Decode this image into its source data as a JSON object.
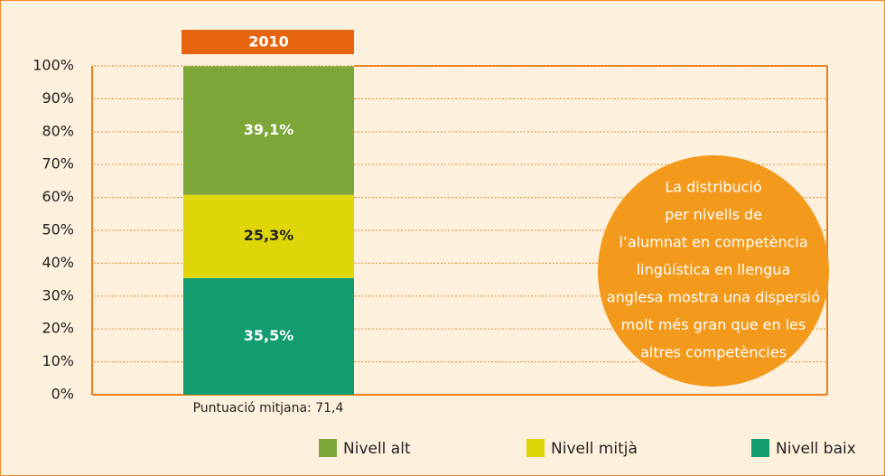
{
  "chart_data": {
    "type": "stacked_bar",
    "categories": [
      "2010"
    ],
    "series": [
      {
        "name": "Nivell baix",
        "color": "#129c6f",
        "values": [
          35.5
        ],
        "value_labels": [
          "35,5%"
        ],
        "label_color": "#ffffff"
      },
      {
        "name": "Nivell mitjà",
        "color": "#dfd60a",
        "values": [
          25.3
        ],
        "value_labels": [
          "25,3%"
        ],
        "label_color": "#222222"
      },
      {
        "name": "Nivell alt",
        "color": "#7ea73a",
        "values": [
          39.1
        ],
        "value_labels": [
          "39,1%"
        ],
        "label_color": "#ffffff"
      }
    ],
    "ylim": [
      0,
      100
    ],
    "yticks": [
      {
        "value": 0,
        "label": "0%"
      },
      {
        "value": 10,
        "label": "10%"
      },
      {
        "value": 20,
        "label": "20%"
      },
      {
        "value": 30,
        "label": "30%"
      },
      {
        "value": 40,
        "label": "40%"
      },
      {
        "value": 50,
        "label": "50%"
      },
      {
        "value": 60,
        "label": "60%"
      },
      {
        "value": 70,
        "label": "70%"
      },
      {
        "value": 80,
        "label": "80%"
      },
      {
        "value": 90,
        "label": "90%"
      },
      {
        "value": 100,
        "label": "100%"
      }
    ],
    "grid": true,
    "note": "Puntuació mitjana: 71,4",
    "annotation": [
      "La distribució",
      "per nivells de",
      "l’alumnat en competència",
      "lingüística en llengua",
      "anglesa mostra una dispersió",
      "molt més gran que en les",
      "altres competències"
    ],
    "legend_order": [
      2,
      1,
      0
    ]
  }
}
